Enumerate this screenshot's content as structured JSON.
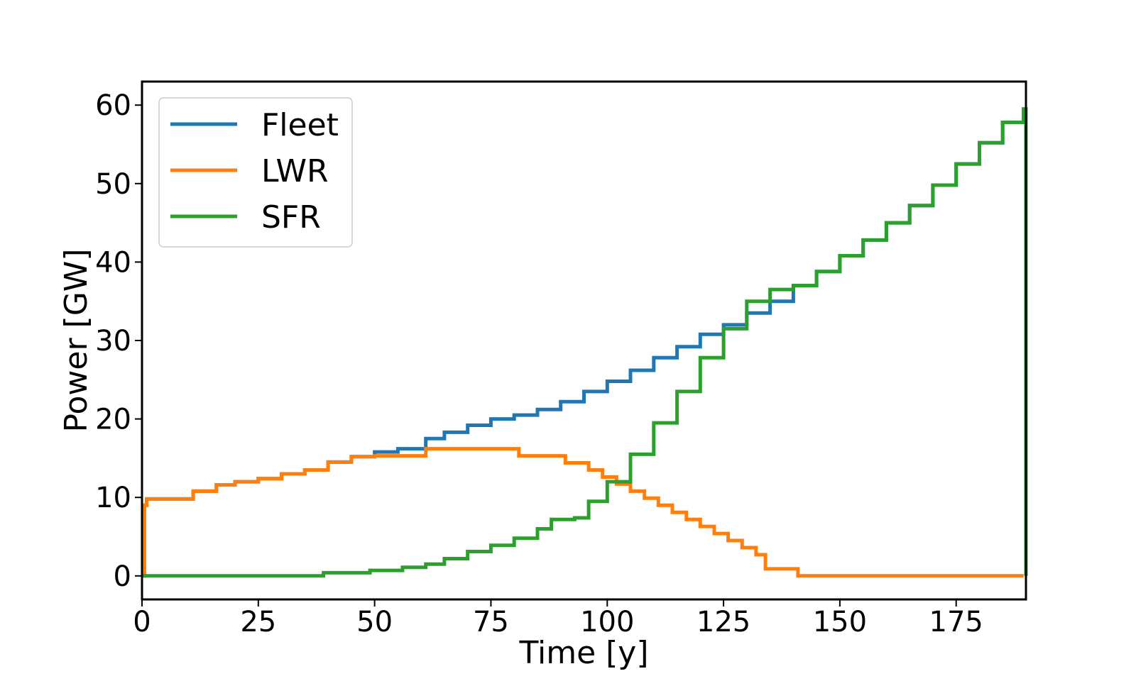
{
  "chart_data": {
    "type": "line",
    "xlabel": "Time [y]",
    "ylabel": "Power [GW]",
    "xlim": [
      0,
      190
    ],
    "ylim": [
      -3,
      63
    ],
    "xticks": [
      0,
      25,
      50,
      75,
      100,
      125,
      150,
      175
    ],
    "yticks": [
      0,
      10,
      20,
      30,
      40,
      50,
      60
    ],
    "grid": false,
    "legend": {
      "position": "top-left"
    },
    "series": [
      {
        "name": "Fleet",
        "color": "#1f77b4",
        "step": true,
        "x": [
          0,
          0.5,
          1,
          11,
          16,
          20,
          25,
          30,
          35,
          40,
          45,
          50,
          55,
          61,
          65,
          70,
          75,
          80,
          85,
          90,
          95,
          100,
          105,
          110,
          115,
          120,
          125,
          130,
          135,
          140,
          145,
          150,
          155,
          160,
          165,
          170,
          175,
          180,
          185,
          189.5,
          190
        ],
        "y": [
          0,
          9,
          9.8,
          10.8,
          11.6,
          12,
          12.4,
          13,
          13.5,
          14.5,
          15.2,
          15.8,
          16.2,
          17.5,
          18.3,
          19.2,
          20,
          20.5,
          21.2,
          22.2,
          23.5,
          24.8,
          26.2,
          27.8,
          29.2,
          30.8,
          32,
          33.5,
          35,
          37,
          38.8,
          40.8,
          42.8,
          45,
          47.2,
          49.8,
          52.5,
          55.2,
          57.8,
          59.5,
          0
        ]
      },
      {
        "name": "LWR",
        "color": "#ff7f0e",
        "step": true,
        "x": [
          0,
          0.5,
          1,
          11,
          16,
          20,
          25,
          30,
          35,
          40,
          45,
          50,
          55,
          61,
          70,
          81,
          86,
          91,
          96,
          99,
          102,
          105,
          108,
          111,
          114,
          117,
          120,
          123,
          126,
          129,
          132,
          134,
          141,
          189.5
        ],
        "y": [
          0,
          9,
          9.8,
          10.8,
          11.6,
          12,
          12.4,
          13,
          13.5,
          14.5,
          15.2,
          15.3,
          15.3,
          16.2,
          16.2,
          15.3,
          15.3,
          14.4,
          13.5,
          12.6,
          11.7,
          10.8,
          9.9,
          9,
          8.1,
          7.2,
          6.3,
          5.4,
          4.5,
          3.6,
          2.7,
          0.9,
          0,
          0
        ]
      },
      {
        "name": "SFR",
        "color": "#2ca02c",
        "step": true,
        "x": [
          0,
          39,
          49,
          56,
          61,
          65,
          70,
          75,
          80,
          85,
          88,
          93,
          96,
          100,
          105,
          110,
          115,
          120,
          125,
          130,
          135,
          140,
          145,
          150,
          155,
          160,
          165,
          170,
          175,
          180,
          185,
          189.5,
          190
        ],
        "y": [
          0,
          0.4,
          0.7,
          1.1,
          1.5,
          2.2,
          3.1,
          3.9,
          4.8,
          6,
          7.2,
          7.4,
          9.5,
          12,
          15.5,
          19.5,
          23.5,
          27.8,
          31.5,
          35,
          36.5,
          37,
          38.8,
          40.8,
          42.8,
          45,
          47.2,
          49.8,
          52.5,
          55.2,
          57.8,
          59.5,
          0
        ]
      }
    ]
  }
}
